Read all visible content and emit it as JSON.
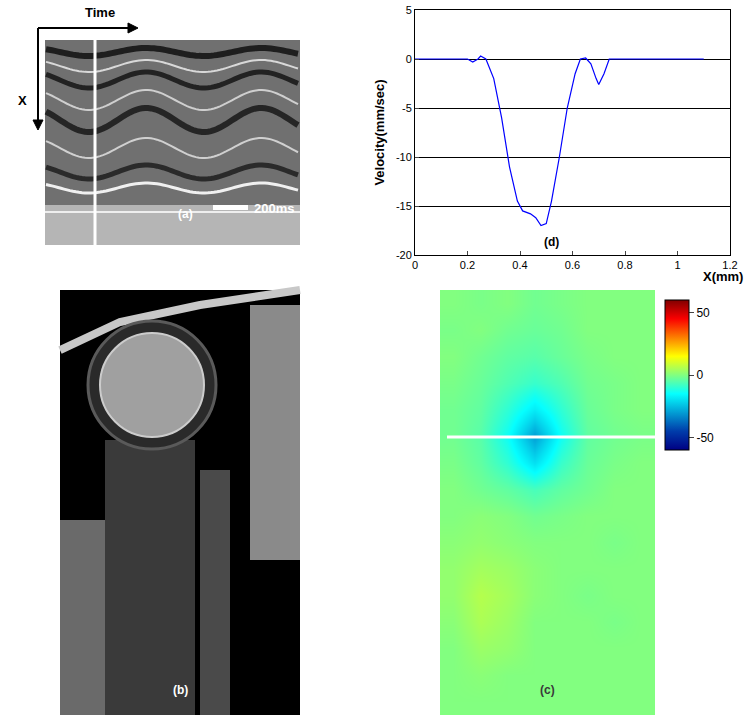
{
  "chart_data": [
    {
      "type": "mmode_image",
      "label": "(a)",
      "axis_labels": {
        "time": "Time",
        "depth": "X"
      },
      "scale_bar": "200ms"
    },
    {
      "type": "oct_image",
      "label": "(b)"
    },
    {
      "type": "heatmap",
      "label": "(c)",
      "color": "Jet",
      "tick_labels": false,
      "cells": [
        [
          0,
          -1,
          0,
          -2,
          -1,
          0,
          0,
          0
        ],
        [
          -1,
          0,
          -2,
          -3,
          -2,
          0,
          0,
          0
        ],
        [
          0,
          -2,
          -4,
          -5,
          -3,
          -1,
          0,
          0
        ],
        [
          -1,
          -3,
          -6,
          -9,
          -6,
          -2,
          -1,
          0
        ],
        [
          -2,
          -4,
          -10,
          -18,
          -10,
          -3,
          -1,
          0
        ],
        [
          -2,
          -5,
          -14,
          -30,
          -14,
          -4,
          -2,
          -1
        ],
        [
          -1,
          -4,
          -10,
          -20,
          -9,
          -3,
          -1,
          0
        ],
        [
          0,
          -2,
          -4,
          -7,
          -4,
          -2,
          0,
          0
        ],
        [
          0,
          1,
          0,
          -2,
          -1,
          0,
          0,
          0
        ],
        [
          1,
          2,
          1,
          0,
          0,
          0,
          -1,
          0
        ],
        [
          2,
          4,
          3,
          1,
          0,
          0,
          0,
          0
        ],
        [
          2,
          6,
          4,
          1,
          0,
          -1,
          0,
          0
        ],
        [
          1,
          5,
          3,
          0,
          0,
          0,
          -1,
          0
        ],
        [
          0,
          3,
          2,
          0,
          0,
          0,
          0,
          0
        ],
        [
          0,
          1,
          0,
          0,
          0,
          0,
          0,
          0
        ],
        [
          0,
          0,
          0,
          0,
          0,
          0,
          0,
          0
        ]
      ],
      "colorbar": {
        "range": [
          -60,
          60
        ],
        "ticks": [
          -50,
          0,
          50
        ]
      }
    },
    {
      "type": "line",
      "label": "(d)",
      "color": "#0000ff",
      "grid": true,
      "xlabel": "X(mm)",
      "ylabel": "Velocity(mm/sec)",
      "x": [
        0,
        0.2,
        0.22,
        0.24,
        0.25,
        0.27,
        0.3,
        0.33,
        0.36,
        0.39,
        0.41,
        0.44,
        0.46,
        0.48,
        0.5,
        0.52,
        0.55,
        0.58,
        0.61,
        0.63,
        0.65,
        0.67,
        0.69,
        0.7,
        0.72,
        0.74,
        0.8,
        1.1
      ],
      "values": [
        0,
        0,
        -0.3,
        0,
        0.3,
        0,
        -2,
        -6,
        -11,
        -14.5,
        -15.5,
        -15.8,
        -16.2,
        -17,
        -16.8,
        -14.5,
        -10,
        -5,
        -1.5,
        0,
        0.1,
        -0.5,
        -2,
        -2.6,
        -1.5,
        0,
        0,
        0
      ],
      "xlim": [
        0,
        1.2
      ],
      "ylim": [
        -20,
        5
      ],
      "xticks": [
        0,
        0.2,
        0.4,
        0.6,
        0.8,
        1,
        1.2
      ],
      "yticks": [
        -20,
        -15,
        -10,
        -5,
        0,
        5
      ]
    }
  ]
}
